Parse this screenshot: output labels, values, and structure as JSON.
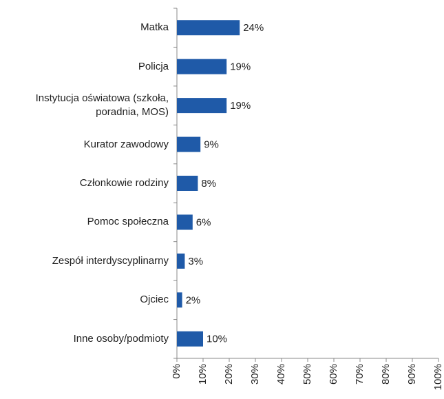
{
  "chart_data": {
    "type": "barh",
    "categories": [
      "Matka",
      "Policja",
      "Instytucja oświatowa (szkoła, poradnia, MOS)",
      "Kurator zawodowy",
      "Członkowie rodziny",
      "Pomoc społeczna",
      "Zespół interdyscyplinarny",
      "Ojciec",
      "Inne osoby/podmioty"
    ],
    "values": [
      24,
      19,
      19,
      9,
      8,
      6,
      3,
      2,
      10
    ],
    "value_labels": [
      "24%",
      "19%",
      "19%",
      "9%",
      "8%",
      "6%",
      "3%",
      "2%",
      "10%"
    ],
    "color": "#1f5aa8",
    "xlim": [
      0,
      100
    ],
    "xticks": [
      {
        "value": 0,
        "label": "0%"
      },
      {
        "value": 10,
        "label": "10%"
      },
      {
        "value": 20,
        "label": "20%"
      },
      {
        "value": 30,
        "label": "30%"
      },
      {
        "value": 40,
        "label": "40%"
      },
      {
        "value": 50,
        "label": "50%"
      },
      {
        "value": 60,
        "label": "60%"
      },
      {
        "value": 70,
        "label": "70%"
      },
      {
        "value": 80,
        "label": "80%"
      },
      {
        "value": 90,
        "label": "90%"
      },
      {
        "value": 100,
        "label": "100%"
      }
    ]
  }
}
